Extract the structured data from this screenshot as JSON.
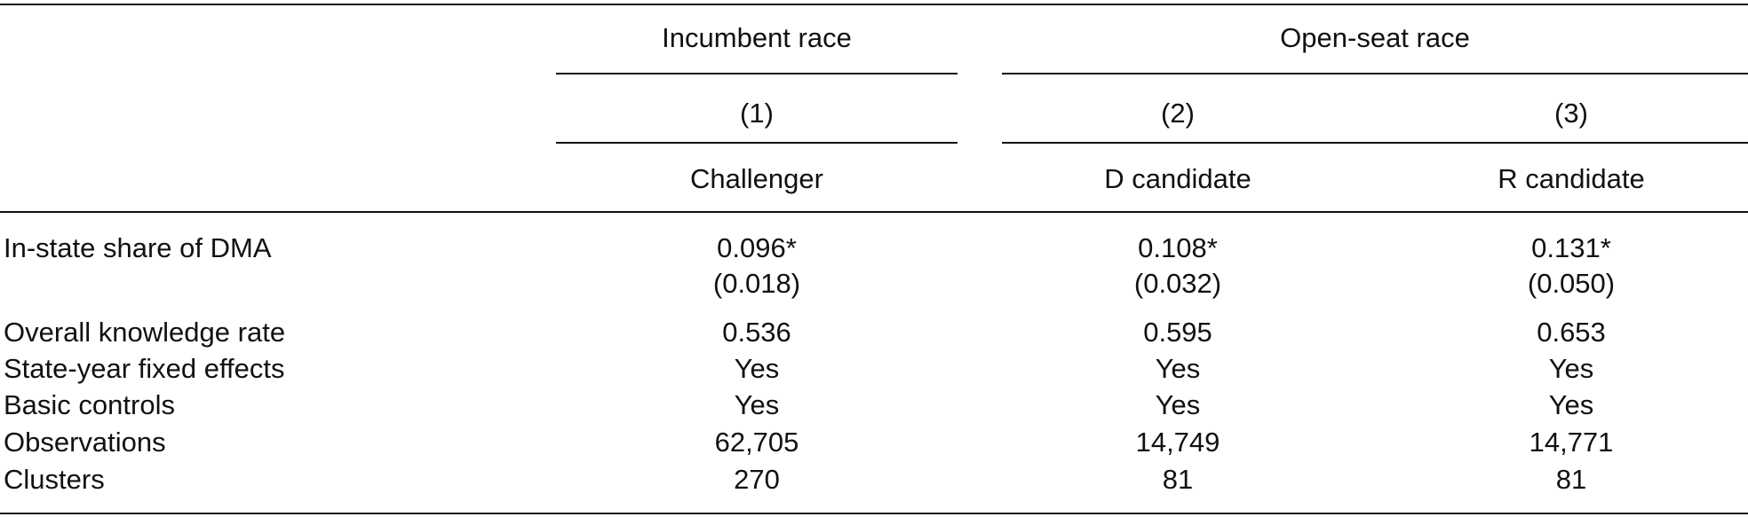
{
  "groups": [
    {
      "label": "Incumbent race"
    },
    {
      "label": "Open-seat race"
    }
  ],
  "columns": [
    {
      "number": "(1)",
      "name": "Challenger"
    },
    {
      "number": "(2)",
      "name": "D candidate"
    },
    {
      "number": "(3)",
      "name": "R candidate"
    }
  ],
  "rows": {
    "share": {
      "label": "In-state share of DMA",
      "coef": [
        "0.096*",
        "0.108*",
        "0.131*"
      ],
      "se": [
        "(0.018)",
        "(0.032)",
        "(0.050)"
      ]
    },
    "knowledge": {
      "label": "Overall knowledge rate",
      "values": [
        "0.536",
        "0.595",
        "0.653"
      ]
    },
    "statefe": {
      "label": "State-year fixed effects",
      "values": [
        "Yes",
        "Yes",
        "Yes"
      ]
    },
    "controls": {
      "label": "Basic controls",
      "values": [
        "Yes",
        "Yes",
        "Yes"
      ]
    },
    "obs": {
      "label": "Observations",
      "values": [
        "62,705",
        "14,749",
        "14,771"
      ]
    },
    "clusters": {
      "label": "Clusters",
      "values": [
        "270",
        "81",
        "81"
      ]
    }
  }
}
